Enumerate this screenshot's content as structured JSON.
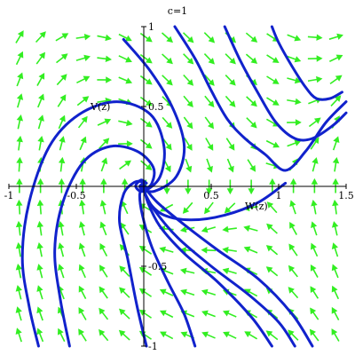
{
  "chart_data": {
    "type": "phase-portrait",
    "title": "c=1",
    "xlabel": "W(z)",
    "ylabel": "V(z)",
    "xlim": [
      -1,
      1.5
    ],
    "ylim": [
      -1,
      1
    ],
    "x_ticks": [
      -1,
      -0.5,
      0.5,
      1,
      1.5
    ],
    "x_tick_labels": [
      "-1",
      "-0.5",
      "0.5",
      "1",
      "1.5"
    ],
    "y_ticks": [
      -1,
      -0.5,
      0.5,
      1
    ],
    "y_tick_labels": [
      "-1",
      "-0.5",
      "0.5",
      "1"
    ],
    "grid": false,
    "equilibrium": [
      0,
      0
    ],
    "direction_field_color": "#33ee22",
    "trajectory_color": "#1122cc",
    "trajectories": [
      {
        "points": [
          [
            -0.78,
            -1.0
          ],
          [
            -0.85,
            -0.75
          ],
          [
            -0.9,
            -0.45
          ],
          [
            -0.85,
            -0.1
          ],
          [
            -0.7,
            0.25
          ],
          [
            -0.48,
            0.45
          ],
          [
            -0.2,
            0.53
          ],
          [
            0.05,
            0.45
          ],
          [
            0.15,
            0.25
          ],
          [
            0.12,
            0.06
          ],
          [
            0.0,
            -0.03
          ],
          [
            -0.06,
            0.0
          ],
          [
            -0.02,
            0.04
          ],
          [
            0.02,
            0.02
          ]
        ]
      },
      {
        "points": [
          [
            -0.55,
            -1.0
          ],
          [
            -0.62,
            -0.7
          ],
          [
            -0.66,
            -0.4
          ],
          [
            -0.6,
            -0.1
          ],
          [
            -0.45,
            0.15
          ],
          [
            -0.25,
            0.25
          ],
          [
            -0.05,
            0.22
          ],
          [
            0.07,
            0.12
          ],
          [
            0.06,
            0.02
          ],
          [
            0.0,
            -0.02
          ],
          [
            -0.03,
            0.0
          ],
          [
            0.0,
            0.02
          ]
        ]
      },
      {
        "points": [
          [
            0.02,
            -1.0
          ],
          [
            -0.05,
            -0.75
          ],
          [
            -0.12,
            -0.45
          ],
          [
            -0.18,
            -0.22
          ],
          [
            -0.15,
            -0.05
          ],
          [
            -0.08,
            0.02
          ],
          [
            -0.02,
            0.03
          ],
          [
            0.01,
            0.0
          ]
        ]
      },
      {
        "points": [
          [
            0.38,
            -1.0
          ],
          [
            0.3,
            -0.8
          ],
          [
            0.18,
            -0.6
          ],
          [
            0.06,
            -0.38
          ],
          [
            -0.01,
            -0.18
          ],
          [
            -0.03,
            -0.05
          ],
          [
            0.0,
            0.0
          ]
        ]
      },
      {
        "points": [
          [
            0.95,
            -1.0
          ],
          [
            0.8,
            -0.82
          ],
          [
            0.55,
            -0.6
          ],
          [
            0.3,
            -0.42
          ],
          [
            0.12,
            -0.25
          ],
          [
            0.03,
            -0.1
          ],
          [
            0.0,
            0.0
          ]
        ]
      },
      {
        "points": [
          [
            1.12,
            -1.0
          ],
          [
            1.0,
            -0.85
          ],
          [
            0.78,
            -0.68
          ],
          [
            0.5,
            -0.5
          ],
          [
            0.25,
            -0.32
          ],
          [
            0.08,
            -0.15
          ],
          [
            0.0,
            -0.03
          ]
        ]
      },
      {
        "points": [
          [
            1.25,
            -1.0
          ],
          [
            1.1,
            -0.8
          ],
          [
            0.85,
            -0.58
          ],
          [
            0.55,
            -0.4
          ],
          [
            0.3,
            -0.24
          ],
          [
            0.1,
            -0.1
          ],
          [
            0.0,
            0.0
          ]
        ]
      },
      {
        "points": [
          [
            1.05,
            0.02
          ],
          [
            0.85,
            -0.1
          ],
          [
            0.6,
            -0.18
          ],
          [
            0.35,
            -0.21
          ],
          [
            0.15,
            -0.18
          ],
          [
            0.04,
            -0.1
          ],
          [
            0.0,
            -0.02
          ]
        ]
      },
      {
        "points": [
          [
            -0.15,
            0.92
          ],
          [
            0.05,
            0.72
          ],
          [
            0.22,
            0.48
          ],
          [
            0.3,
            0.25
          ],
          [
            0.24,
            0.06
          ],
          [
            0.08,
            -0.03
          ],
          [
            -0.02,
            -0.01
          ],
          [
            0.0,
            0.02
          ]
        ]
      },
      {
        "points": [
          [
            0.23,
            1.0
          ],
          [
            0.38,
            0.8
          ],
          [
            0.5,
            0.6
          ],
          [
            0.62,
            0.42
          ],
          [
            0.75,
            0.3
          ],
          [
            0.9,
            0.2
          ],
          [
            1.05,
            0.1
          ],
          [
            1.2,
            0.22
          ],
          [
            1.35,
            0.4
          ],
          [
            1.5,
            0.53
          ]
        ]
      },
      {
        "points": [
          [
            0.6,
            1.0
          ],
          [
            0.72,
            0.78
          ],
          [
            0.85,
            0.58
          ],
          [
            0.98,
            0.4
          ],
          [
            1.12,
            0.3
          ],
          [
            1.25,
            0.3
          ],
          [
            1.4,
            0.38
          ],
          [
            1.5,
            0.46
          ]
        ]
      },
      {
        "points": [
          [
            0.95,
            1.0
          ],
          [
            1.0,
            0.9
          ],
          [
            1.1,
            0.75
          ],
          [
            1.2,
            0.62
          ],
          [
            1.28,
            0.55
          ],
          [
            1.38,
            0.55
          ],
          [
            1.47,
            0.59
          ]
        ]
      }
    ]
  }
}
